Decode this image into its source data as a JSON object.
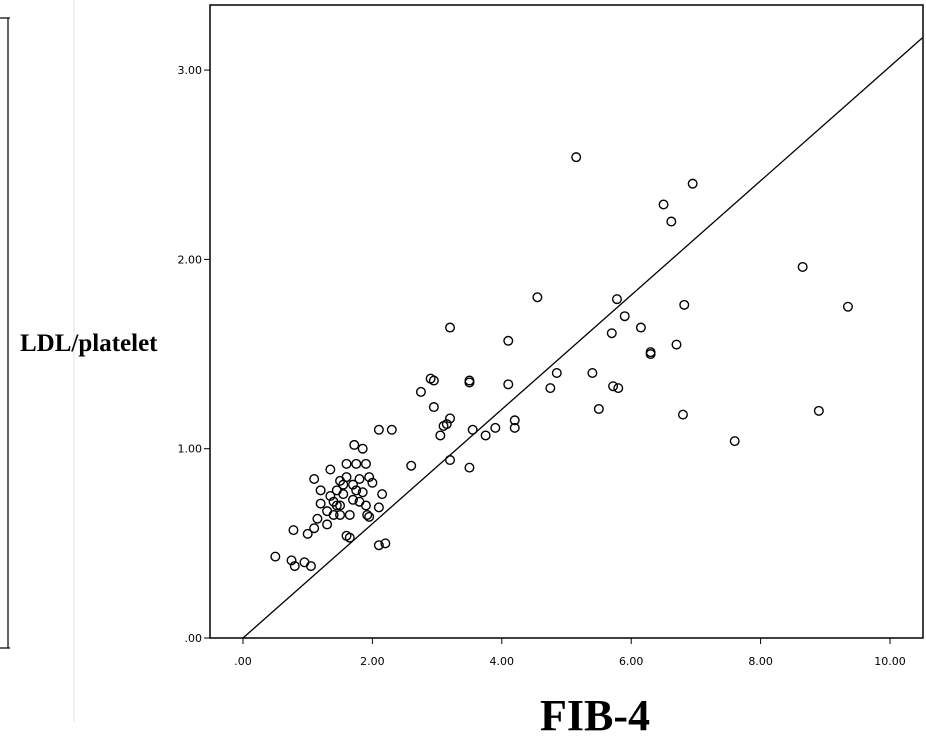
{
  "chart_data": {
    "type": "scatter",
    "title": "",
    "xlabel": "FIB-4",
    "ylabel": "LDL/platelet",
    "xlim": [
      0,
      10.5
    ],
    "ylim": [
      0,
      3.35
    ],
    "xticks": [
      0,
      2,
      4,
      6,
      8,
      10
    ],
    "xtick_labels": [
      ".00",
      "2.00",
      "4.00",
      "6.00",
      "8.00",
      "10.00"
    ],
    "yticks": [
      0,
      1,
      2,
      3
    ],
    "ytick_labels": [
      ".00",
      "1.00",
      "2.00",
      "3.00"
    ],
    "grid": false,
    "fit_line": {
      "x": [
        0,
        10.5
      ],
      "y": [
        0,
        3.17
      ]
    },
    "points": [
      [
        0.5,
        0.43
      ],
      [
        0.75,
        0.41
      ],
      [
        0.8,
        0.38
      ],
      [
        0.78,
        0.57
      ],
      [
        0.95,
        0.4
      ],
      [
        1.05,
        0.38
      ],
      [
        1.0,
        0.55
      ],
      [
        1.1,
        0.58
      ],
      [
        1.15,
        0.63
      ],
      [
        1.2,
        0.78
      ],
      [
        1.2,
        0.71
      ],
      [
        1.1,
        0.84
      ],
      [
        1.3,
        0.6
      ],
      [
        1.3,
        0.67
      ],
      [
        1.35,
        0.75
      ],
      [
        1.35,
        0.89
      ],
      [
        1.4,
        0.65
      ],
      [
        1.4,
        0.72
      ],
      [
        1.45,
        0.78
      ],
      [
        1.5,
        0.83
      ],
      [
        1.5,
        0.7
      ],
      [
        1.55,
        0.76
      ],
      [
        1.55,
        0.81
      ],
      [
        1.6,
        0.85
      ],
      [
        1.6,
        0.92
      ],
      [
        1.6,
        0.54
      ],
      [
        1.65,
        0.53
      ],
      [
        1.65,
        0.65
      ],
      [
        1.7,
        0.73
      ],
      [
        1.7,
        0.81
      ],
      [
        1.72,
        1.02
      ],
      [
        1.75,
        0.92
      ],
      [
        1.75,
        0.78
      ],
      [
        1.8,
        0.84
      ],
      [
        1.8,
        0.72
      ],
      [
        1.85,
        1.0
      ],
      [
        1.85,
        0.77
      ],
      [
        1.9,
        0.7
      ],
      [
        1.9,
        0.92
      ],
      [
        1.92,
        0.65
      ],
      [
        1.95,
        0.85
      ],
      [
        1.95,
        0.64
      ],
      [
        2.0,
        0.82
      ],
      [
        2.1,
        0.69
      ],
      [
        2.15,
        0.76
      ],
      [
        2.1,
        0.49
      ],
      [
        2.2,
        0.5
      ],
      [
        2.1,
        1.1
      ],
      [
        2.3,
        1.1
      ],
      [
        1.45,
        0.7
      ],
      [
        1.5,
        0.65
      ],
      [
        2.6,
        0.91
      ],
      [
        2.75,
        1.3
      ],
      [
        2.9,
        1.37
      ],
      [
        2.95,
        1.36
      ],
      [
        2.95,
        1.22
      ],
      [
        3.05,
        1.07
      ],
      [
        3.1,
        1.12
      ],
      [
        3.15,
        1.13
      ],
      [
        3.2,
        1.16
      ],
      [
        3.2,
        0.94
      ],
      [
        3.2,
        1.64
      ],
      [
        3.5,
        1.36
      ],
      [
        3.5,
        1.35
      ],
      [
        3.5,
        0.9
      ],
      [
        3.55,
        1.1
      ],
      [
        3.75,
        1.07
      ],
      [
        3.9,
        1.11
      ],
      [
        4.1,
        1.57
      ],
      [
        4.1,
        1.34
      ],
      [
        4.2,
        1.11
      ],
      [
        4.2,
        1.15
      ],
      [
        4.55,
        1.8
      ],
      [
        4.75,
        1.32
      ],
      [
        4.85,
        1.4
      ],
      [
        5.15,
        2.54
      ],
      [
        5.4,
        1.4
      ],
      [
        5.5,
        1.21
      ],
      [
        5.7,
        1.61
      ],
      [
        5.72,
        1.33
      ],
      [
        5.78,
        1.79
      ],
      [
        5.8,
        1.32
      ],
      [
        5.9,
        1.7
      ],
      [
        6.15,
        1.64
      ],
      [
        6.3,
        1.51
      ],
      [
        6.3,
        1.5
      ],
      [
        6.5,
        2.29
      ],
      [
        6.62,
        2.2
      ],
      [
        6.7,
        1.55
      ],
      [
        6.8,
        1.18
      ],
      [
        6.82,
        1.76
      ],
      [
        6.95,
        2.4
      ],
      [
        7.6,
        1.04
      ],
      [
        8.65,
        1.96
      ],
      [
        8.9,
        1.2
      ],
      [
        9.35,
        1.75
      ]
    ]
  }
}
